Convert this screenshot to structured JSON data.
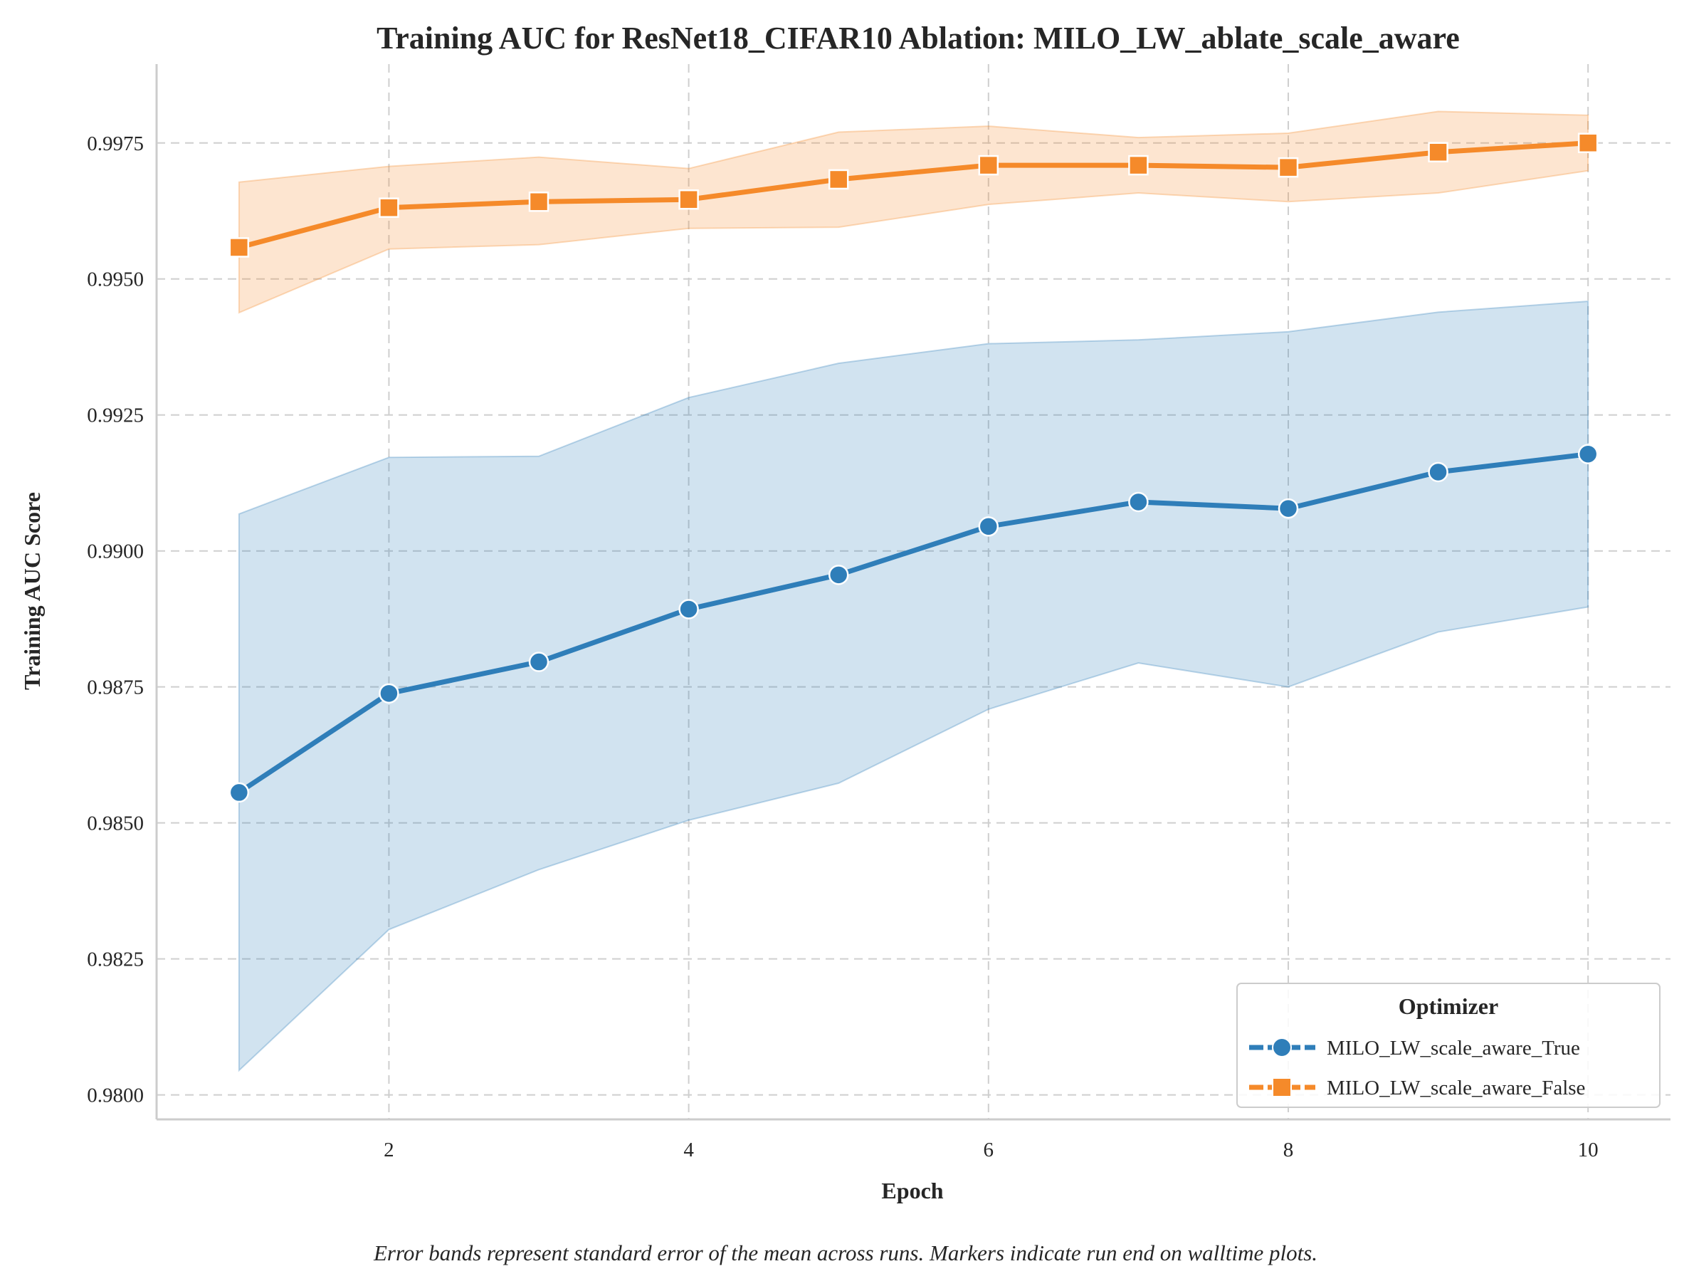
{
  "chart_data": {
    "type": "line",
    "title": "Training AUC for ResNet18_CIFAR10 Ablation: MILO_LW_ablate_scale_aware",
    "xlabel": "Epoch",
    "ylabel": "Training AUC Score",
    "caption": "Error bands represent standard error of the mean across runs. Markers indicate run end on walltime plots.",
    "xlim": [
      0.45,
      10.55
    ],
    "ylim": [
      0.97955,
      0.99895
    ],
    "x_ticks": [
      2,
      4,
      6,
      8,
      10
    ],
    "y_ticks": [
      0.98,
      0.9825,
      0.985,
      0.9875,
      0.99,
      0.9925,
      0.995,
      0.9975
    ],
    "x_tick_labels": [
      "2",
      "4",
      "6",
      "8",
      "10"
    ],
    "y_tick_labels": [
      "0.9800",
      "0.9825",
      "0.9850",
      "0.9875",
      "0.9900",
      "0.9925",
      "0.9950",
      "0.9975"
    ],
    "grid": true,
    "legend_title": "Optimizer",
    "legend_position": "lower-right",
    "x": [
      1,
      2,
      3,
      4,
      5,
      6,
      7,
      8,
      9,
      10
    ],
    "series": [
      {
        "name": "MILO_LW_scale_aware_True",
        "color": "#2f7eb9",
        "marker": "circle",
        "values": [
          0.98556,
          0.98738,
          0.98796,
          0.98893,
          0.98956,
          0.99045,
          0.9909,
          0.99078,
          0.99145,
          0.99178
        ],
        "lower": [
          0.98045,
          0.98304,
          0.98414,
          0.98505,
          0.98573,
          0.98709,
          0.98794,
          0.9875,
          0.98851,
          0.98897
        ],
        "upper": [
          0.99068,
          0.99172,
          0.99174,
          0.99282,
          0.99345,
          0.99381,
          0.99388,
          0.99403,
          0.99439,
          0.99459
        ]
      },
      {
        "name": "MILO_LW_scale_aware_False",
        "color": "#f58a2a",
        "marker": "square",
        "values": [
          0.99558,
          0.99631,
          0.99642,
          0.99646,
          0.99683,
          0.99709,
          0.99709,
          0.99705,
          0.99733,
          0.9975
        ],
        "lower": [
          0.99438,
          0.99555,
          0.99563,
          0.99593,
          0.99595,
          0.99637,
          0.99658,
          0.99642,
          0.99658,
          0.99699
        ],
        "upper": [
          0.99678,
          0.99707,
          0.99724,
          0.99703,
          0.9977,
          0.99781,
          0.9976,
          0.99768,
          0.99808,
          0.99801
        ]
      }
    ]
  }
}
